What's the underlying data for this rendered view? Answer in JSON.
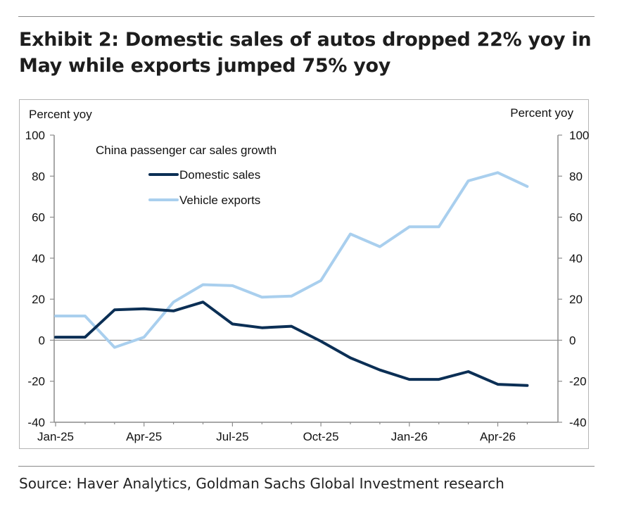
{
  "header": {
    "title_line1": "Exhibit 2: Domestic sales of autos dropped 22% yoy in",
    "title_line2": "May while exports jumped 75% yoy"
  },
  "footer": {
    "source": "Source: Haver Analytics, Goldman Sachs Global Investment research"
  },
  "chart_data": {
    "type": "line",
    "title": "Exhibit 2: Domestic sales of autos dropped 22% yoy in May while exports jumped 75% yoy",
    "ylabel_left": "Percent yoy",
    "ylabel_right": "Percent yoy",
    "legend_title": "China passenger car sales growth",
    "legend_position": "top-left",
    "ylim": [
      -40,
      100
    ],
    "yticks": [
      -40,
      -20,
      0,
      20,
      40,
      60,
      80,
      100
    ],
    "xtick_labels": [
      "Jan-25",
      "Apr-25",
      "Jul-25",
      "Oct-25",
      "Jan-26",
      "Apr-26"
    ],
    "x": [
      "Jan-25",
      "Feb-25",
      "Mar-25",
      "Apr-25",
      "May-25",
      "Jun-25",
      "Jul-25",
      "Aug-25",
      "Sep-25",
      "Oct-25",
      "Nov-25",
      "Dec-25",
      "Jan-26",
      "Feb-26",
      "Mar-26",
      "Apr-26",
      "May-26"
    ],
    "grid": false,
    "series": [
      {
        "name": "Domestic sales",
        "color": "#0b2f55",
        "values": [
          1.5,
          1.5,
          14.8,
          15.3,
          14.3,
          18.6,
          7.9,
          6.1,
          6.8,
          -0.5,
          -8.6,
          -14.5,
          -19.1,
          -19.1,
          -15.3,
          -21.5,
          -22.1
        ]
      },
      {
        "name": "Vehicle exports",
        "color": "#a9cfee",
        "values": [
          11.8,
          11.8,
          -3.5,
          1.5,
          18.6,
          27.1,
          26.6,
          21.0,
          21.5,
          29.1,
          51.8,
          45.6,
          55.3,
          55.3,
          77.7,
          81.7,
          75.0
        ]
      }
    ]
  }
}
